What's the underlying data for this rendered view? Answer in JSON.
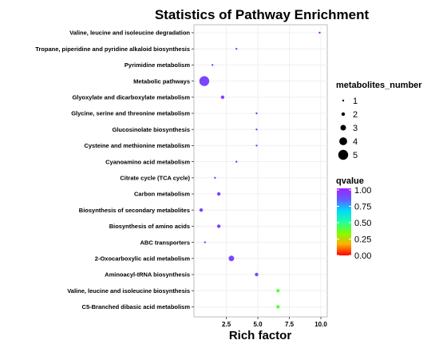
{
  "chart_data": {
    "type": "scatter",
    "title": "Statistics of Pathway Enrichment",
    "xlabel": "Rich factor",
    "xlim": [
      0,
      10.5
    ],
    "x_ticks": [
      "2.5",
      "5.0",
      "7.5",
      "10.0"
    ],
    "grid": true,
    "legend_position": "right",
    "pathways": [
      {
        "name": "Valine, leucine and isoleucine degradation",
        "x": 9.9,
        "metabolites_number": 1,
        "qvalue": 1.0
      },
      {
        "name": "Tropane, piperidine and pyridine alkaloid biosynthesis",
        "x": 3.3,
        "metabolites_number": 1,
        "qvalue": 0.97
      },
      {
        "name": "Pyrimidine metabolism",
        "x": 1.4,
        "metabolites_number": 1,
        "qvalue": 0.97
      },
      {
        "name": "Metabolic pathways",
        "x": 0.75,
        "metabolites_number": 5,
        "qvalue": 0.9
      },
      {
        "name": "Glyoxylate and dicarboxylate metabolism",
        "x": 2.2,
        "metabolites_number": 2,
        "qvalue": 0.92
      },
      {
        "name": "Glycine, serine and threonine metabolism",
        "x": 4.9,
        "metabolites_number": 1,
        "qvalue": 0.95
      },
      {
        "name": "Glucosinolate biosynthesis",
        "x": 4.9,
        "metabolites_number": 1,
        "qvalue": 0.95
      },
      {
        "name": "Cysteine and methionine metabolism",
        "x": 4.9,
        "metabolites_number": 1,
        "qvalue": 0.95
      },
      {
        "name": "Cyanoamino acid metabolism",
        "x": 3.3,
        "metabolites_number": 1,
        "qvalue": 0.97
      },
      {
        "name": "Citrate cycle (TCA cycle)",
        "x": 1.6,
        "metabolites_number": 1,
        "qvalue": 0.97
      },
      {
        "name": "Carbon metabolism",
        "x": 1.9,
        "metabolites_number": 2,
        "qvalue": 0.92
      },
      {
        "name": "Biosynthesis of secondary metabolites",
        "x": 0.5,
        "metabolites_number": 2,
        "qvalue": 0.9
      },
      {
        "name": "Biosynthesis of amino acids",
        "x": 1.9,
        "metabolites_number": 2,
        "qvalue": 0.92
      },
      {
        "name": "ABC transporters",
        "x": 0.8,
        "metabolites_number": 1,
        "qvalue": 0.97
      },
      {
        "name": "2-Oxocarboxylic acid metabolism",
        "x": 2.9,
        "metabolites_number": 3,
        "qvalue": 0.9
      },
      {
        "name": "Aminoacyl-tRNA biosynthesis",
        "x": 4.9,
        "metabolites_number": 2,
        "qvalue": 0.88
      },
      {
        "name": "Valine, leucine and isoleucine biosynthesis",
        "x": 6.6,
        "metabolites_number": 2,
        "qvalue": 0.4
      },
      {
        "name": "C5-Branched dibasic acid metabolism",
        "x": 6.6,
        "metabolites_number": 2,
        "qvalue": 0.4
      }
    ],
    "size_legend": {
      "title": "metabolites_number",
      "labels": [
        "1",
        "2",
        "3",
        "4",
        "5"
      ]
    },
    "color_legend": {
      "title": "qvalue",
      "labels": [
        "1.00",
        "0.75",
        "0.50",
        "0.25",
        "0.00"
      ],
      "colors": [
        "#ff0000",
        "#ffb000",
        "#80ff00",
        "#20ffa0",
        "#00d8ff",
        "#6060ff",
        "#a020ff"
      ]
    }
  }
}
